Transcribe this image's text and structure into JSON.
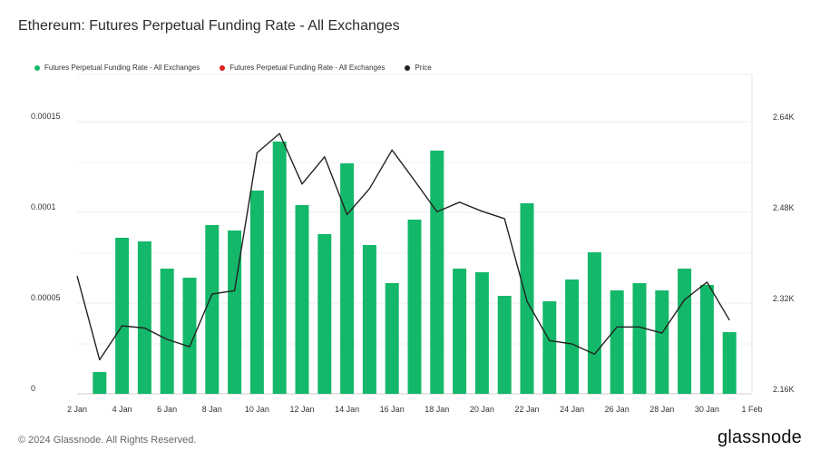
{
  "title": "Ethereum: Futures Perpetual Funding Rate - All Exchanges",
  "legend": [
    {
      "label": "Futures Perpetual Funding Rate - All Exchanges",
      "color": "#14b86a"
    },
    {
      "label": "Futures Perpetual Funding Rate - All Exchanges",
      "color": "#e0201a"
    },
    {
      "label": "Price",
      "color": "#222222"
    }
  ],
  "footer": {
    "copyright": "© 2024 Glassnode. All Rights Reserved.",
    "logo": "glassnode"
  },
  "chart_data": {
    "type": "bar",
    "x_dates": [
      "2 Jan",
      "3 Jan",
      "4 Jan",
      "5 Jan",
      "6 Jan",
      "7 Jan",
      "8 Jan",
      "9 Jan",
      "10 Jan",
      "11 Jan",
      "12 Jan",
      "13 Jan",
      "14 Jan",
      "15 Jan",
      "16 Jan",
      "17 Jan",
      "18 Jan",
      "19 Jan",
      "20 Jan",
      "21 Jan",
      "22 Jan",
      "23 Jan",
      "24 Jan",
      "25 Jan",
      "26 Jan",
      "27 Jan",
      "28 Jan",
      "29 Jan",
      "30 Jan",
      "31 Jan",
      "1 Feb"
    ],
    "x_tick_labels": [
      "2 Jan",
      "4 Jan",
      "6 Jan",
      "8 Jan",
      "10 Jan",
      "12 Jan",
      "14 Jan",
      "16 Jan",
      "18 Jan",
      "20 Jan",
      "22 Jan",
      "24 Jan",
      "26 Jan",
      "28 Jan",
      "30 Jan",
      "1 Feb"
    ],
    "y_left": {
      "ticks": [
        0,
        5e-05,
        0.0001,
        0.00015
      ],
      "tick_labels": [
        "0",
        "0.00005",
        "0.0001",
        "0.00015"
      ],
      "range": [
        0,
        0.00015
      ]
    },
    "y_right": {
      "ticks": [
        2160,
        2320,
        2480,
        2640
      ],
      "tick_labels": [
        "2.16K",
        "2.32K",
        "2.48K",
        "2.64K"
      ],
      "range": [
        2160,
        2640
      ]
    },
    "grid": true,
    "series": [
      {
        "name": "Futures Perpetual Funding Rate - All Exchanges",
        "type": "bar",
        "axis": "left",
        "color": "#14b86a",
        "values": [
          null,
          1.2e-05,
          8.6e-05,
          8.4e-05,
          6.9e-05,
          6.4e-05,
          9.3e-05,
          9e-05,
          0.000112,
          0.000139,
          0.000104,
          8.8e-05,
          0.000127,
          8.2e-05,
          6.1e-05,
          9.6e-05,
          0.000134,
          6.9e-05,
          6.7e-05,
          5.4e-05,
          0.000105,
          5.1e-05,
          6.3e-05,
          7.8e-05,
          5.7e-05,
          6.1e-05,
          5.7e-05,
          6.9e-05,
          6e-05,
          3.4e-05,
          null
        ]
      },
      {
        "name": "Price",
        "type": "line",
        "axis": "right",
        "color": "#222222",
        "values": [
          2360,
          2212,
          2272,
          2268,
          2248,
          2235,
          2328,
          2334,
          2577,
          2611,
          2522,
          2570,
          2468,
          2514,
          2582,
          2528,
          2473,
          2490,
          2474,
          2461,
          2315,
          2246,
          2240,
          2222,
          2270,
          2270,
          2259,
          2318,
          2349,
          2282,
          null
        ]
      }
    ]
  }
}
